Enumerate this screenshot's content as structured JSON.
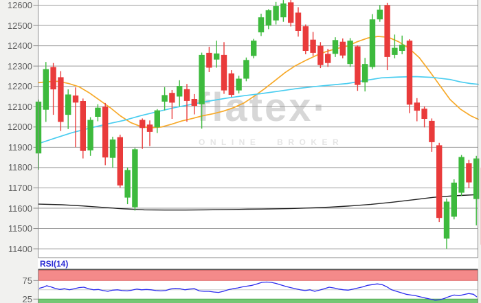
{
  "watermark": {
    "brand": "flatex·",
    "tagline": "ONLINE BROKER"
  },
  "indicator_label": "RSI(14)",
  "price_axis": {
    "ticks": [
      "12600",
      "12500",
      "12400",
      "12300",
      "12200",
      "12100",
      "12000",
      "11900",
      "11800",
      "11700",
      "11600",
      "11500",
      "11400"
    ]
  },
  "rsi_axis": {
    "ticks": [
      {
        "label": "75",
        "value": 75
      },
      {
        "label": "25",
        "value": 25
      }
    ]
  },
  "colors": {
    "page_bg": "#f1f1ef",
    "plot_bg": "#ffffff",
    "grid": "#9a9a9a",
    "axis": "#8a8a8a",
    "border": "#8a8a8a",
    "rsi_top_border": "#555555",
    "up": "#3dba3d",
    "down": "#e93b3b",
    "ma_fast": "#f7a928",
    "ma_mid": "#49cdf0",
    "ma_slow": "#222222",
    "rsi_line": "#2b2bee",
    "band_red": "#f48a8a",
    "band_red_edge": "#dd6565",
    "band_green": "#74c774",
    "band_green_edge": "#4fa84f",
    "rsi_midline": "#c9c9c9",
    "tick_text": "#5f5f5f",
    "watermark_text": "#d7d7d7"
  },
  "chart_data": [
    {
      "type": "candlestick",
      "title": "",
      "xlabel": "",
      "ylabel": "",
      "y_ticks": [
        12600,
        12500,
        12400,
        12300,
        12200,
        12100,
        12000,
        11900,
        11800,
        11700,
        11600,
        11500,
        11400
      ],
      "ylim_visible": [
        11356,
        12625
      ],
      "grid": true,
      "x_start": 56,
      "x_step": 10.8,
      "candles_format": "[open, high, low, close]",
      "candles": [
        [
          11870,
          12135,
          11790,
          12125
        ],
        [
          12085,
          12320,
          12025,
          12285
        ],
        [
          12295,
          12315,
          12060,
          12185
        ],
        [
          12245,
          12275,
          11980,
          12025
        ],
        [
          12060,
          12185,
          11990,
          12160
        ],
        [
          12155,
          12195,
          11900,
          12120
        ],
        [
          12128,
          12140,
          11845,
          11882
        ],
        [
          11885,
          12048,
          11858,
          12035
        ],
        [
          12050,
          12112,
          12028,
          12095
        ],
        [
          12100,
          12118,
          11812,
          11850
        ],
        [
          11848,
          11952,
          11800,
          11938
        ],
        [
          11950,
          11962,
          11702,
          11712
        ],
        [
          11652,
          11800,
          11620,
          11788
        ],
        [
          11605,
          11897,
          11588,
          11890
        ],
        [
          12035,
          12042,
          11892,
          11995
        ],
        [
          12012,
          12032,
          11906,
          11976
        ],
        [
          11998,
          12088,
          11970,
          12082
        ],
        [
          12125,
          12196,
          12082,
          12157
        ],
        [
          12168,
          12182,
          12040,
          12120
        ],
        [
          12150,
          12230,
          12100,
          12202
        ],
        [
          12186,
          12212,
          12026,
          12128
        ],
        [
          12138,
          12162,
          12062,
          12104
        ],
        [
          12112,
          12366,
          11992,
          12355
        ],
        [
          12365,
          12395,
          12270,
          12292
        ],
        [
          12332,
          12425,
          12292,
          12362
        ],
        [
          12355,
          12418,
          12163,
          12180
        ],
        [
          12264,
          12280,
          12148,
          12158
        ],
        [
          12180,
          12252,
          12165,
          12238
        ],
        [
          12238,
          12342,
          12225,
          12330
        ],
        [
          12350,
          12434,
          12338,
          12425
        ],
        [
          12466,
          12558,
          12448,
          12540
        ],
        [
          12500,
          12580,
          12482,
          12575
        ],
        [
          12525,
          12616,
          12505,
          12595
        ],
        [
          12540,
          12625,
          12518,
          12608
        ],
        [
          12614,
          12625,
          12495,
          12513
        ],
        [
          12563,
          12590,
          12445,
          12473
        ],
        [
          12496,
          12505,
          12358,
          12375
        ],
        [
          12430,
          12468,
          12350,
          12365
        ],
        [
          12400,
          12418,
          12290,
          12305
        ],
        [
          12360,
          12385,
          12296,
          12315
        ],
        [
          12360,
          12442,
          12345,
          12428
        ],
        [
          12420,
          12436,
          12338,
          12352
        ],
        [
          12310,
          12438,
          12296,
          12425
        ],
        [
          12397,
          12402,
          12178,
          12207
        ],
        [
          12220,
          12340,
          12175,
          12310
        ],
        [
          12295,
          12556,
          12285,
          12530
        ],
        [
          12530,
          12600,
          12518,
          12578
        ],
        [
          12600,
          12612,
          12280,
          12345
        ],
        [
          12355,
          12455,
          12338,
          12390
        ],
        [
          12375,
          12450,
          12358,
          12405
        ],
        [
          12425,
          12432,
          12068,
          12110
        ],
        [
          12120,
          12142,
          12028,
          12080
        ],
        [
          12090,
          12102,
          11998,
          12040
        ],
        [
          12030,
          12042,
          11878,
          11925
        ],
        [
          11910,
          11922,
          11532,
          11552
        ],
        [
          11450,
          11648,
          11400,
          11632
        ],
        [
          11558,
          11742,
          11545,
          11726
        ],
        [
          11676,
          11862,
          11660,
          11852
        ],
        [
          11822,
          11838,
          11698,
          11727
        ],
        [
          11645,
          11858,
          11515,
          11845
        ],
        [
          11800,
          11822,
          11408,
          11420
        ]
      ],
      "overlays": [
        {
          "name": "ma-fast-orange",
          "color": "#f7a928",
          "points": [
            [
              56,
              12218
            ],
            [
              70,
              12223
            ],
            [
              85,
              12225
            ],
            [
              100,
              12214
            ],
            [
              115,
              12198
            ],
            [
              130,
              12168
            ],
            [
              145,
              12132
            ],
            [
              160,
              12096
            ],
            [
              175,
              12055
            ],
            [
              190,
              12022
            ],
            [
              205,
              12002
            ],
            [
              220,
              11996
            ],
            [
              235,
              12000
            ],
            [
              250,
              12014
            ],
            [
              265,
              12030
            ],
            [
              280,
              12042
            ],
            [
              295,
              12055
            ],
            [
              310,
              12065
            ],
            [
              325,
              12078
            ],
            [
              340,
              12095
            ],
            [
              355,
              12118
            ],
            [
              370,
              12152
            ],
            [
              385,
              12188
            ],
            [
              400,
              12228
            ],
            [
              415,
              12268
            ],
            [
              430,
              12302
            ],
            [
              445,
              12328
            ],
            [
              460,
              12352
            ],
            [
              475,
              12372
            ],
            [
              490,
              12386
            ],
            [
              505,
              12398
            ],
            [
              520,
              12420
            ],
            [
              535,
              12438
            ],
            [
              550,
              12446
            ],
            [
              565,
              12442
            ],
            [
              580,
              12420
            ],
            [
              595,
              12388
            ],
            [
              610,
              12342
            ],
            [
              625,
              12275
            ],
            [
              640,
              12205
            ],
            [
              655,
              12135
            ],
            [
              670,
              12088
            ],
            [
              685,
              12055
            ],
            [
              696,
              12038
            ]
          ]
        },
        {
          "name": "ma-mid-cyan",
          "color": "#49cdf0",
          "points": [
            [
              56,
              11918
            ],
            [
              80,
              11945
            ],
            [
              105,
              11972
            ],
            [
              130,
              11994
            ],
            [
              155,
              12014
            ],
            [
              180,
              12032
            ],
            [
              205,
              12056
            ],
            [
              230,
              12076
            ],
            [
              255,
              12096
            ],
            [
              280,
              12112
            ],
            [
              305,
              12128
            ],
            [
              330,
              12142
            ],
            [
              355,
              12154
            ],
            [
              380,
              12164
            ],
            [
              405,
              12176
            ],
            [
              430,
              12188
            ],
            [
              455,
              12198
            ],
            [
              480,
              12206
            ],
            [
              505,
              12214
            ],
            [
              530,
              12228
            ],
            [
              555,
              12242
            ],
            [
              580,
              12246
            ],
            [
              605,
              12248
            ],
            [
              630,
              12244
            ],
            [
              655,
              12234
            ],
            [
              670,
              12222
            ],
            [
              685,
              12214
            ],
            [
              696,
              12210
            ]
          ]
        },
        {
          "name": "ma-slow-black",
          "color": "#222222",
          "points": [
            [
              56,
              11620
            ],
            [
              90,
              11617
            ],
            [
              120,
              11611
            ],
            [
              150,
              11604
            ],
            [
              180,
              11597
            ],
            [
              210,
              11592
            ],
            [
              240,
              11591
            ],
            [
              270,
              11591
            ],
            [
              300,
              11592
            ],
            [
              330,
              11593
            ],
            [
              360,
              11595
            ],
            [
              390,
              11596
            ],
            [
              420,
              11598
            ],
            [
              450,
              11601
            ],
            [
              480,
              11605
            ],
            [
              510,
              11611
            ],
            [
              540,
              11619
            ],
            [
              570,
              11629
            ],
            [
              600,
              11641
            ],
            [
              630,
              11653
            ],
            [
              660,
              11661
            ],
            [
              690,
              11666
            ],
            [
              696,
              11667
            ]
          ]
        }
      ]
    },
    {
      "type": "line",
      "name": "RSI(14)",
      "ylim": [
        0,
        100
      ],
      "midline": 50,
      "bands": [
        {
          "name": "overbought",
          "from": 75,
          "to": 100,
          "color": "#f48a8a"
        },
        {
          "name": "oversold",
          "from": 0,
          "to": 25,
          "color": "#74c774"
        }
      ],
      "points": [
        [
          57,
          54
        ],
        [
          63,
          57
        ],
        [
          68,
          61
        ],
        [
          74,
          58
        ],
        [
          80,
          54
        ],
        [
          87,
          51
        ],
        [
          94,
          53
        ],
        [
          101,
          50
        ],
        [
          108,
          53
        ],
        [
          115,
          56
        ],
        [
          122,
          57
        ],
        [
          129,
          53
        ],
        [
          136,
          50
        ],
        [
          143,
          51
        ],
        [
          150,
          48
        ],
        [
          157,
          46
        ],
        [
          164,
          49
        ],
        [
          171,
          50
        ],
        [
          178,
          48
        ],
        [
          185,
          47
        ],
        [
          192,
          49
        ],
        [
          199,
          52
        ],
        [
          206,
          50
        ],
        [
          213,
          51
        ],
        [
          220,
          50
        ],
        [
          227,
          48
        ],
        [
          234,
          47
        ],
        [
          241,
          48
        ],
        [
          248,
          52
        ],
        [
          255,
          54
        ],
        [
          262,
          53
        ],
        [
          269,
          50
        ],
        [
          276,
          52
        ],
        [
          283,
          53
        ],
        [
          290,
          47
        ],
        [
          297,
          46
        ],
        [
          304,
          46
        ],
        [
          311,
          44
        ],
        [
          318,
          43
        ],
        [
          325,
          46
        ],
        [
          332,
          50
        ],
        [
          339,
          53
        ],
        [
          346,
          55
        ],
        [
          353,
          58
        ],
        [
          360,
          60
        ],
        [
          367,
          62
        ],
        [
          374,
          66
        ],
        [
          381,
          70
        ],
        [
          388,
          71
        ],
        [
          395,
          70
        ],
        [
          402,
          67
        ],
        [
          409,
          63
        ],
        [
          416,
          59
        ],
        [
          423,
          56
        ],
        [
          430,
          53
        ],
        [
          437,
          50
        ],
        [
          444,
          48
        ],
        [
          451,
          50
        ],
        [
          458,
          46
        ],
        [
          465,
          49
        ],
        [
          472,
          53
        ],
        [
          479,
          57
        ],
        [
          486,
          55
        ],
        [
          493,
          52
        ],
        [
          500,
          50
        ],
        [
          507,
          49
        ],
        [
          514,
          52
        ],
        [
          521,
          55
        ],
        [
          528,
          58
        ],
        [
          535,
          62
        ],
        [
          542,
          64
        ],
        [
          549,
          66
        ],
        [
          556,
          64
        ],
        [
          563,
          58
        ],
        [
          570,
          50
        ],
        [
          577,
          46
        ],
        [
          584,
          42
        ],
        [
          591,
          38
        ],
        [
          598,
          36
        ],
        [
          605,
          34
        ],
        [
          612,
          31
        ],
        [
          619,
          28
        ],
        [
          626,
          25
        ],
        [
          633,
          22
        ],
        [
          640,
          23
        ],
        [
          647,
          27
        ],
        [
          654,
          32
        ],
        [
          661,
          36
        ],
        [
          668,
          34
        ],
        [
          675,
          37
        ],
        [
          682,
          40
        ],
        [
          689,
          38
        ],
        [
          694,
          31
        ]
      ]
    }
  ]
}
